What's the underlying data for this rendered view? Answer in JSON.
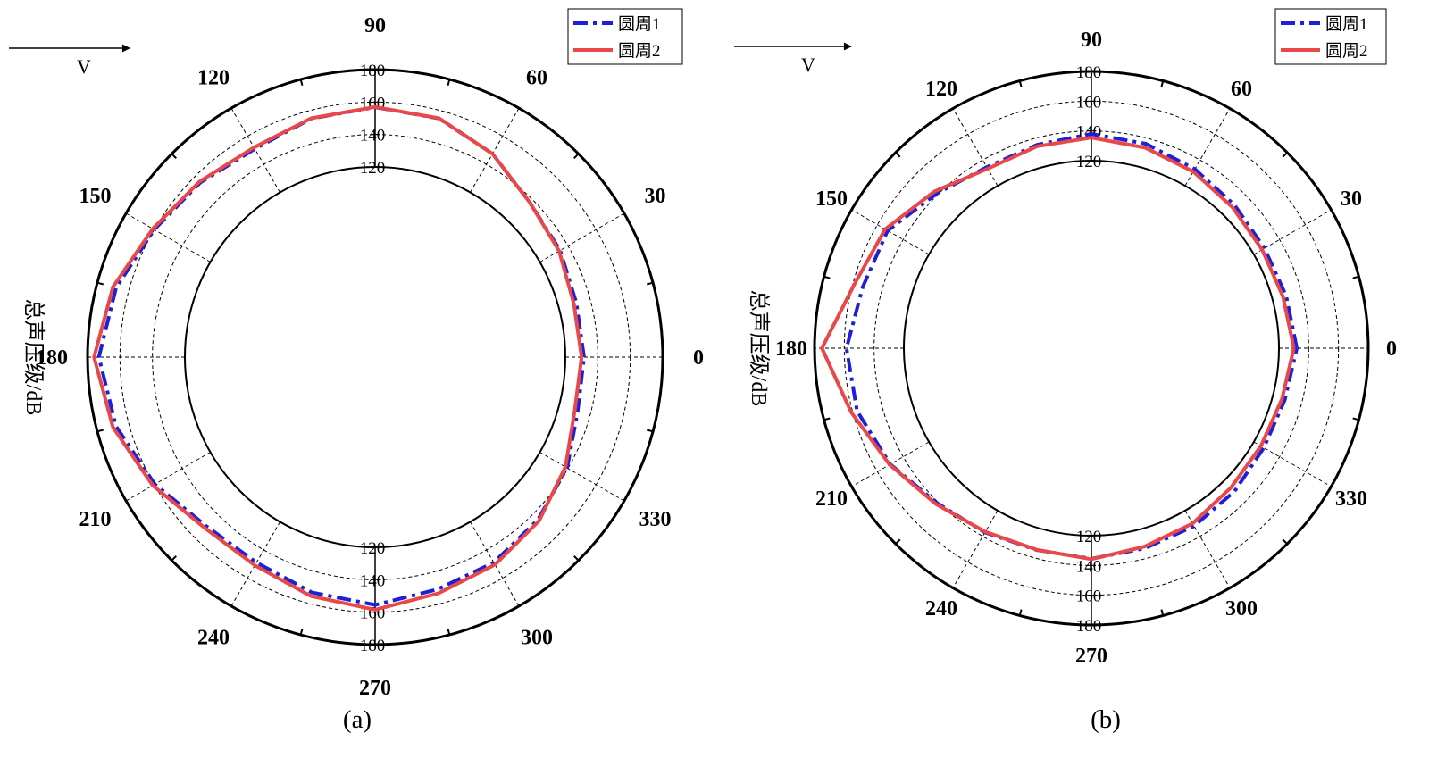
{
  "chart_data": [
    {
      "type": "polar-line",
      "panel_label": "(a)",
      "ylabel": "总声压级/dB",
      "flow_direction_label": "V",
      "radial_axis": {
        "range": [
          120,
          180
        ],
        "ticks": [
          120,
          140,
          160,
          180
        ],
        "tick_labels": [
          "120",
          "140",
          "160",
          "180"
        ]
      },
      "angular_axis": {
        "ticks_deg": [
          0,
          30,
          60,
          90,
          120,
          150,
          180,
          210,
          240,
          270,
          300,
          330
        ],
        "tick_labels": [
          "0",
          "30",
          "60",
          "90",
          "120",
          "150",
          "180",
          "210",
          "240",
          "270",
          "300",
          "330"
        ]
      },
      "grid": true,
      "legend": {
        "placement": "top-right"
      },
      "series": [
        {
          "name": "圆周1",
          "color": "#1f1fd6",
          "style": "dash-dot",
          "theta_deg": [
            0,
            15,
            30,
            45,
            60,
            75,
            90,
            105,
            120,
            135,
            150,
            165,
            180,
            195,
            210,
            225,
            240,
            255,
            270,
            285,
            300,
            315,
            330,
            345
          ],
          "values": [
            131.5,
            131.2,
            134.4,
            137.6,
            147.5,
            155.1,
            156.8,
            155.0,
            151.0,
            155.0,
            160.0,
            168.0,
            173.0,
            168.0,
            159.5,
            150.0,
            149.0,
            153.0,
            155.5,
            151.0,
            149.0,
            144.6,
            139.4,
            132.0
          ]
        },
        {
          "name": "圆周2",
          "color": "#e84848",
          "style": "solid",
          "theta_deg": [
            0,
            15,
            30,
            45,
            60,
            75,
            90,
            105,
            120,
            135,
            150,
            165,
            180,
            195,
            210,
            225,
            240,
            255,
            270,
            285,
            300,
            315,
            330,
            345
          ],
          "values": [
            130.0,
            129.6,
            133.7,
            137.6,
            147.5,
            155.2,
            157.0,
            155.2,
            152.0,
            155.8,
            161.0,
            170.0,
            176.0,
            170.0,
            161.0,
            151.5,
            151.0,
            155.3,
            158.5,
            153.5,
            150.5,
            145.6,
            138.2,
            130.1
          ]
        }
      ]
    },
    {
      "type": "polar-line",
      "panel_label": "(b)",
      "ylabel": "总声压级/dB",
      "flow_direction_label": "V",
      "radial_axis": {
        "range": [
          120,
          180
        ],
        "ticks": [
          120,
          140,
          160,
          180
        ],
        "tick_labels": [
          "120",
          "140",
          "160",
          "180"
        ]
      },
      "angular_axis": {
        "ticks_deg": [
          0,
          30,
          60,
          90,
          120,
          150,
          180,
          210,
          240,
          270,
          300,
          330
        ],
        "tick_labels": [
          "0",
          "30",
          "60",
          "90",
          "120",
          "150",
          "180",
          "210",
          "240",
          "270",
          "300",
          "330"
        ]
      },
      "grid": true,
      "legend": {
        "placement": "top-right"
      },
      "series": [
        {
          "name": "圆周1",
          "color": "#1f1fd6",
          "style": "dash-dot",
          "theta_deg": [
            0,
            15,
            30,
            45,
            60,
            75,
            90,
            105,
            120,
            135,
            150,
            165,
            180,
            195,
            210,
            225,
            240,
            255,
            270,
            285,
            300,
            315,
            330,
            345
          ],
          "values": [
            132.0,
            129.5,
            128.3,
            130.0,
            133.0,
            136.2,
            138.0,
            135.5,
            134.5,
            141.0,
            152.0,
            153.0,
            158.5,
            157.0,
            150.0,
            141.0,
            137.0,
            134.5,
            135.5,
            133.2,
            132.0,
            130.0,
            127.8,
            128.5
          ]
        },
        {
          "name": "圆周2",
          "color": "#e84848",
          "style": "solid",
          "theta_deg": [
            0,
            15,
            30,
            45,
            60,
            75,
            90,
            105,
            120,
            135,
            150,
            165,
            180,
            195,
            210,
            225,
            240,
            255,
            270,
            285,
            300,
            315,
            330,
            345
          ],
          "values": [
            130.0,
            127.3,
            126.5,
            128.0,
            131.0,
            133.5,
            135.5,
            134.5,
            133.3,
            143.0,
            154.0,
            159.0,
            175.0,
            161.0,
            150.5,
            142.0,
            136.5,
            134.3,
            135.8,
            132.0,
            130.0,
            126.5,
            125.5,
            126.5
          ]
        }
      ]
    }
  ]
}
